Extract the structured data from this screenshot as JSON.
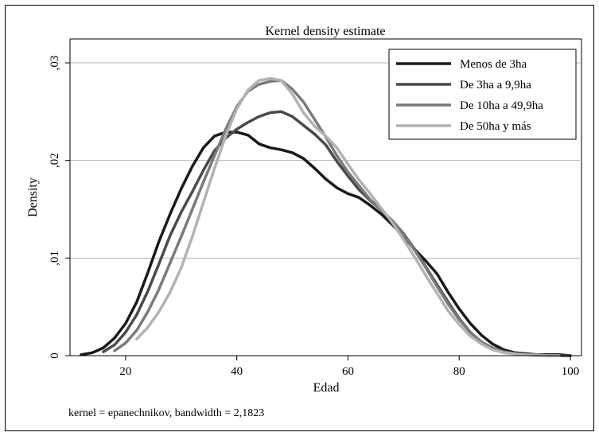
{
  "chart_data": {
    "type": "line",
    "title": "Kernel density estimate",
    "xlabel": "Edad",
    "ylabel": "Density",
    "note": "kernel = epanechnikov, bandwidth = 2,1823",
    "xlim": [
      10,
      102
    ],
    "ylim": [
      0,
      0.03
    ],
    "x_ticks": [
      20,
      40,
      60,
      80,
      100
    ],
    "x_tick_labels": [
      "20",
      "40",
      "60",
      "80",
      "100"
    ],
    "y_ticks": [
      0,
      0.01,
      0.02,
      0.03
    ],
    "y_tick_labels": [
      "0",
      ",01",
      ",02",
      ",03"
    ],
    "grid": true,
    "legend_position": "top-right",
    "series": [
      {
        "name": "Menos de 3ha",
        "color": "#1a1a1a",
        "x": [
          12,
          14,
          16,
          18,
          20,
          22,
          24,
          26,
          28,
          30,
          32,
          34,
          36,
          38,
          40,
          42,
          44,
          46,
          48,
          50,
          52,
          54,
          56,
          58,
          60,
          62,
          64,
          66,
          68,
          70,
          72,
          74,
          76,
          78,
          80,
          82,
          84,
          86,
          88,
          90,
          92,
          94,
          96,
          98,
          100
        ],
        "y": [
          0.0001,
          0.0003,
          0.0008,
          0.0018,
          0.0033,
          0.0055,
          0.0085,
          0.0117,
          0.0145,
          0.0171,
          0.0194,
          0.0213,
          0.0225,
          0.0229,
          0.0229,
          0.0226,
          0.0217,
          0.0213,
          0.0211,
          0.0208,
          0.0202,
          0.0192,
          0.0181,
          0.0172,
          0.0166,
          0.0162,
          0.0154,
          0.0145,
          0.0134,
          0.0122,
          0.0109,
          0.0097,
          0.0084,
          0.0065,
          0.0048,
          0.0033,
          0.0021,
          0.0012,
          0.0006,
          0.0003,
          0.0002,
          0.0001,
          0.0001,
          0.0001,
          0.0
        ]
      },
      {
        "name": "De 3ha a 9,9ha",
        "color": "#4a4a4a",
        "x": [
          16,
          18,
          20,
          22,
          24,
          26,
          28,
          30,
          32,
          34,
          36,
          38,
          40,
          42,
          44,
          46,
          48,
          50,
          52,
          54,
          56,
          58,
          60,
          62,
          64,
          66,
          68,
          70,
          72,
          74,
          76,
          78,
          80,
          82,
          84,
          86,
          88,
          90,
          92,
          94,
          96,
          98,
          100
        ],
        "y": [
          0.0004,
          0.0011,
          0.0024,
          0.0042,
          0.0066,
          0.0094,
          0.0123,
          0.0147,
          0.0168,
          0.019,
          0.021,
          0.0223,
          0.0232,
          0.0239,
          0.0245,
          0.0249,
          0.025,
          0.0245,
          0.0236,
          0.0227,
          0.0216,
          0.0199,
          0.0184,
          0.017,
          0.0159,
          0.0149,
          0.0138,
          0.0125,
          0.0109,
          0.0091,
          0.0073,
          0.0055,
          0.0038,
          0.0024,
          0.0014,
          0.0008,
          0.0004,
          0.0002,
          0.0001,
          0.0001,
          0.0,
          0.0,
          0.0
        ]
      },
      {
        "name": "De 10ha a 49,9ha",
        "color": "#7a7a7a",
        "x": [
          18,
          20,
          22,
          24,
          26,
          28,
          30,
          32,
          34,
          36,
          38,
          40,
          42,
          44,
          46,
          48,
          50,
          52,
          54,
          56,
          58,
          60,
          62,
          64,
          66,
          68,
          70,
          72,
          74,
          76,
          78,
          80,
          82,
          84,
          86,
          88,
          90,
          92,
          94,
          96,
          98
        ],
        "y": [
          0.0005,
          0.0013,
          0.0026,
          0.0045,
          0.0068,
          0.0095,
          0.0122,
          0.015,
          0.0178,
          0.0205,
          0.0232,
          0.0255,
          0.0271,
          0.0278,
          0.0281,
          0.0282,
          0.0273,
          0.026,
          0.0242,
          0.0224,
          0.0205,
          0.0188,
          0.0174,
          0.016,
          0.0149,
          0.0138,
          0.0124,
          0.0108,
          0.009,
          0.0071,
          0.0053,
          0.0037,
          0.0024,
          0.0014,
          0.0008,
          0.0004,
          0.0002,
          0.0001,
          0.0001,
          0.0,
          0.0
        ]
      },
      {
        "name": "De 50ha y más",
        "color": "#b2b2b2",
        "x": [
          22,
          24,
          26,
          28,
          30,
          32,
          34,
          36,
          38,
          40,
          42,
          44,
          46,
          48,
          50,
          52,
          54,
          56,
          58,
          60,
          62,
          64,
          66,
          68,
          70,
          72,
          74,
          76,
          78,
          80,
          82,
          84,
          86,
          88,
          90,
          92,
          94,
          96,
          98
        ],
        "y": [
          0.0017,
          0.0029,
          0.0045,
          0.0065,
          0.009,
          0.0122,
          0.0157,
          0.0192,
          0.0225,
          0.0253,
          0.0272,
          0.0282,
          0.0284,
          0.0282,
          0.0268,
          0.0249,
          0.0235,
          0.0225,
          0.0213,
          0.0196,
          0.018,
          0.0166,
          0.0151,
          0.0136,
          0.0119,
          0.0101,
          0.0082,
          0.0064,
          0.0046,
          0.0032,
          0.002,
          0.0012,
          0.0006,
          0.0003,
          0.0002,
          0.0001,
          0.0,
          0.0,
          0.0
        ]
      }
    ]
  }
}
